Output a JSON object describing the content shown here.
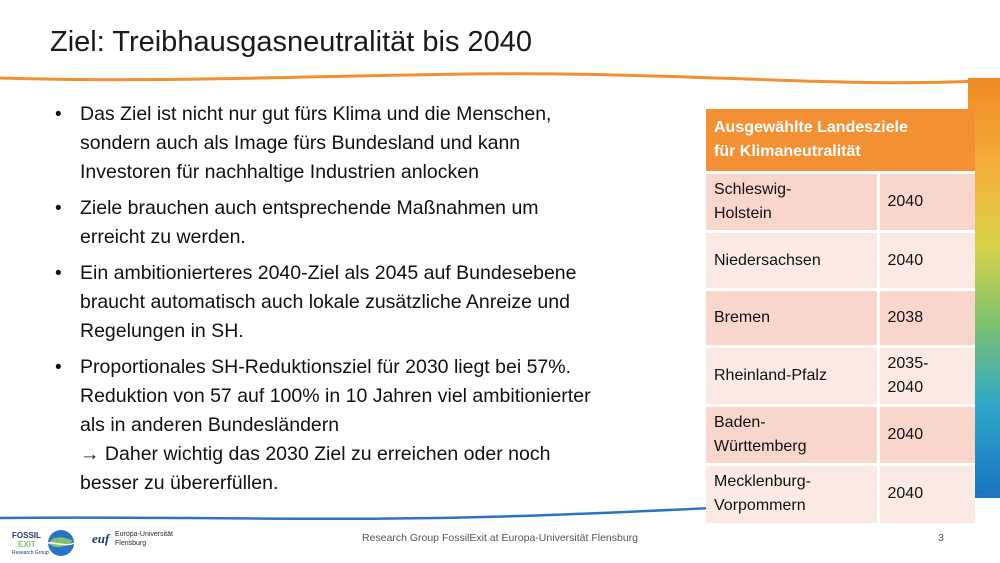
{
  "slide": {
    "title": "Ziel: Treibhausgasneutralität bis 2040",
    "page_number": "3",
    "footer": "Research Group FossilExit at Europa-Universität Flensburg"
  },
  "bullets": [
    {
      "lines": [
        "Das Ziel ist nicht nur gut fürs Klima und die Menschen,",
        "sondern auch als Image fürs Bundesland und kann",
        "Investoren für nachhaltige Industrien anlocken"
      ]
    },
    {
      "lines": [
        "Ziele brauchen auch entsprechende Maßnahmen um",
        "erreicht zu werden."
      ]
    },
    {
      "lines": [
        "Ein ambitionierteres 2040-Ziel als 2045 auf Bundesebene",
        "braucht automatisch auch lokale zusätzliche Anreize und",
        "Regelungen in SH."
      ]
    },
    {
      "lines": [
        "Proportionales SH-Reduktionsziel für 2030 liegt bei 57%.",
        "Reduktion von 57 auf 100% in 10 Jahren viel ambitionierter",
        "als in anderen Bundesländern",
        "→ Daher wichtig das 2030 Ziel zu erreichen oder noch",
        "besser zu übererfüllen."
      ]
    }
  ],
  "bullet_symbol": "•",
  "table": {
    "header_line1": "Ausgewählte Landesziele",
    "header_line2": "für Klimaneutralität",
    "rows": [
      {
        "state_line1": "Schleswig-",
        "state_line2": "Holstein",
        "year_line1": "2040",
        "year_line2": ""
      },
      {
        "state_line1": "Niedersachsen",
        "state_line2": "",
        "year_line1": "2040",
        "year_line2": ""
      },
      {
        "state_line1": "Bremen",
        "state_line2": "",
        "year_line1": "2038",
        "year_line2": ""
      },
      {
        "state_line1": "Rheinland-Pfalz",
        "state_line2": "",
        "year_line1": "2035-",
        "year_line2": "2040"
      },
      {
        "state_line1": "Baden-",
        "state_line2": "Württemberg",
        "year_line1": "2040",
        "year_line2": ""
      },
      {
        "state_line1": "Mecklenburg-",
        "state_line2": "Vorpommern",
        "year_line1": "2040",
        "year_line2": ""
      }
    ]
  },
  "logos": {
    "fossilexit_line1": "FOSSIL",
    "fossilexit_line2": "EXIT",
    "fossilexit_line3": "Research Group",
    "euf_mark": "euf",
    "euf_line1": "Europa-Universität",
    "euf_line2": "Flensburg"
  },
  "colors": {
    "accent_orange": "#f39034",
    "row_dark": "#f8d6cb",
    "row_light": "#fbeae4"
  }
}
